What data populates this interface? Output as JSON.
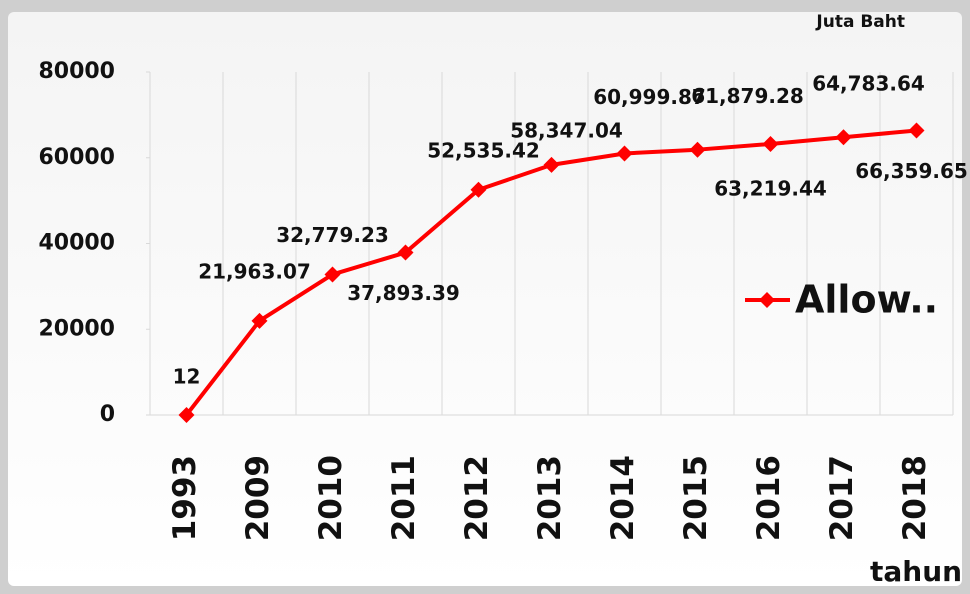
{
  "chart_data": {
    "type": "line",
    "unit_label": "Juta Baht",
    "x_label": "tahun",
    "categories": [
      "1993",
      "2009",
      "2010",
      "2011",
      "2012",
      "2013",
      "2014",
      "2015",
      "2016",
      "2017",
      "2018"
    ],
    "series": [
      {
        "name": "Allow..",
        "color": "#ff0000",
        "values": [
          12,
          21963.07,
          32779.23,
          37893.39,
          52535.42,
          58347.04,
          60999.87,
          61879.28,
          63219.44,
          64783.64,
          66359.65
        ],
        "value_labels": [
          "12",
          "21,963.07",
          "32,779.23",
          "37,893.39",
          "52,535.42",
          "58,347.04",
          "60,999.87",
          "61,879.28",
          "63,219.44",
          "64,783.64",
          "66,359.65"
        ]
      }
    ],
    "ylim": [
      0,
      80000
    ],
    "yticks": [
      0,
      20000,
      40000,
      60000,
      80000
    ],
    "grid": "x",
    "legend": "right"
  }
}
